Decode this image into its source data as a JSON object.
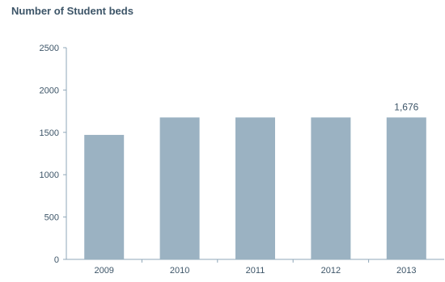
{
  "chart_data": {
    "type": "bar",
    "title": "Number of Student beds",
    "categories": [
      "2009",
      "2010",
      "2011",
      "2012",
      "2013"
    ],
    "values": [
      1470,
      1676,
      1676,
      1676,
      1676
    ],
    "ylim": [
      0,
      2500
    ],
    "yticks": [
      "0",
      "500",
      "1000",
      "1500",
      "2000",
      "2500"
    ],
    "data_labels": [
      {
        "index": 4,
        "text": "1,676"
      }
    ],
    "xlabel": "",
    "ylabel": "",
    "grid": false,
    "legend": "none",
    "colors": {
      "bar": "#9bb2c2",
      "axis": "#8fa7b8",
      "text": "#3d5568"
    }
  }
}
